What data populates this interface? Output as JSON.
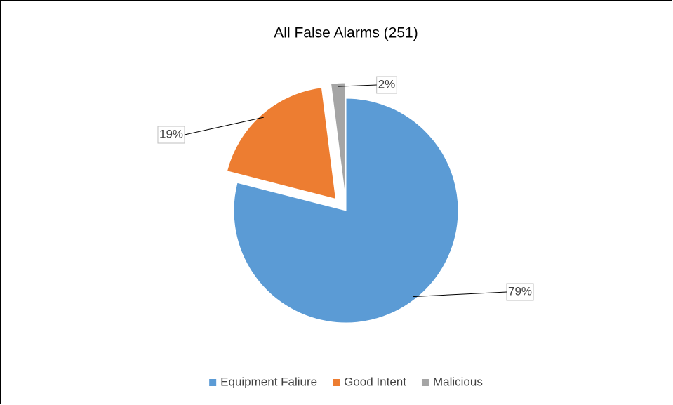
{
  "chart_data": {
    "type": "pie",
    "title": "All False Alarms (251)",
    "categories": [
      "Equipment Faliure",
      "Good Intent",
      "Malicious"
    ],
    "values": [
      79,
      19,
      2
    ],
    "value_labels": [
      "79%",
      "19%",
      "2%"
    ],
    "colors": [
      "#5b9bd5",
      "#ed7d31",
      "#a5a5a5"
    ],
    "legend": "bottom"
  }
}
